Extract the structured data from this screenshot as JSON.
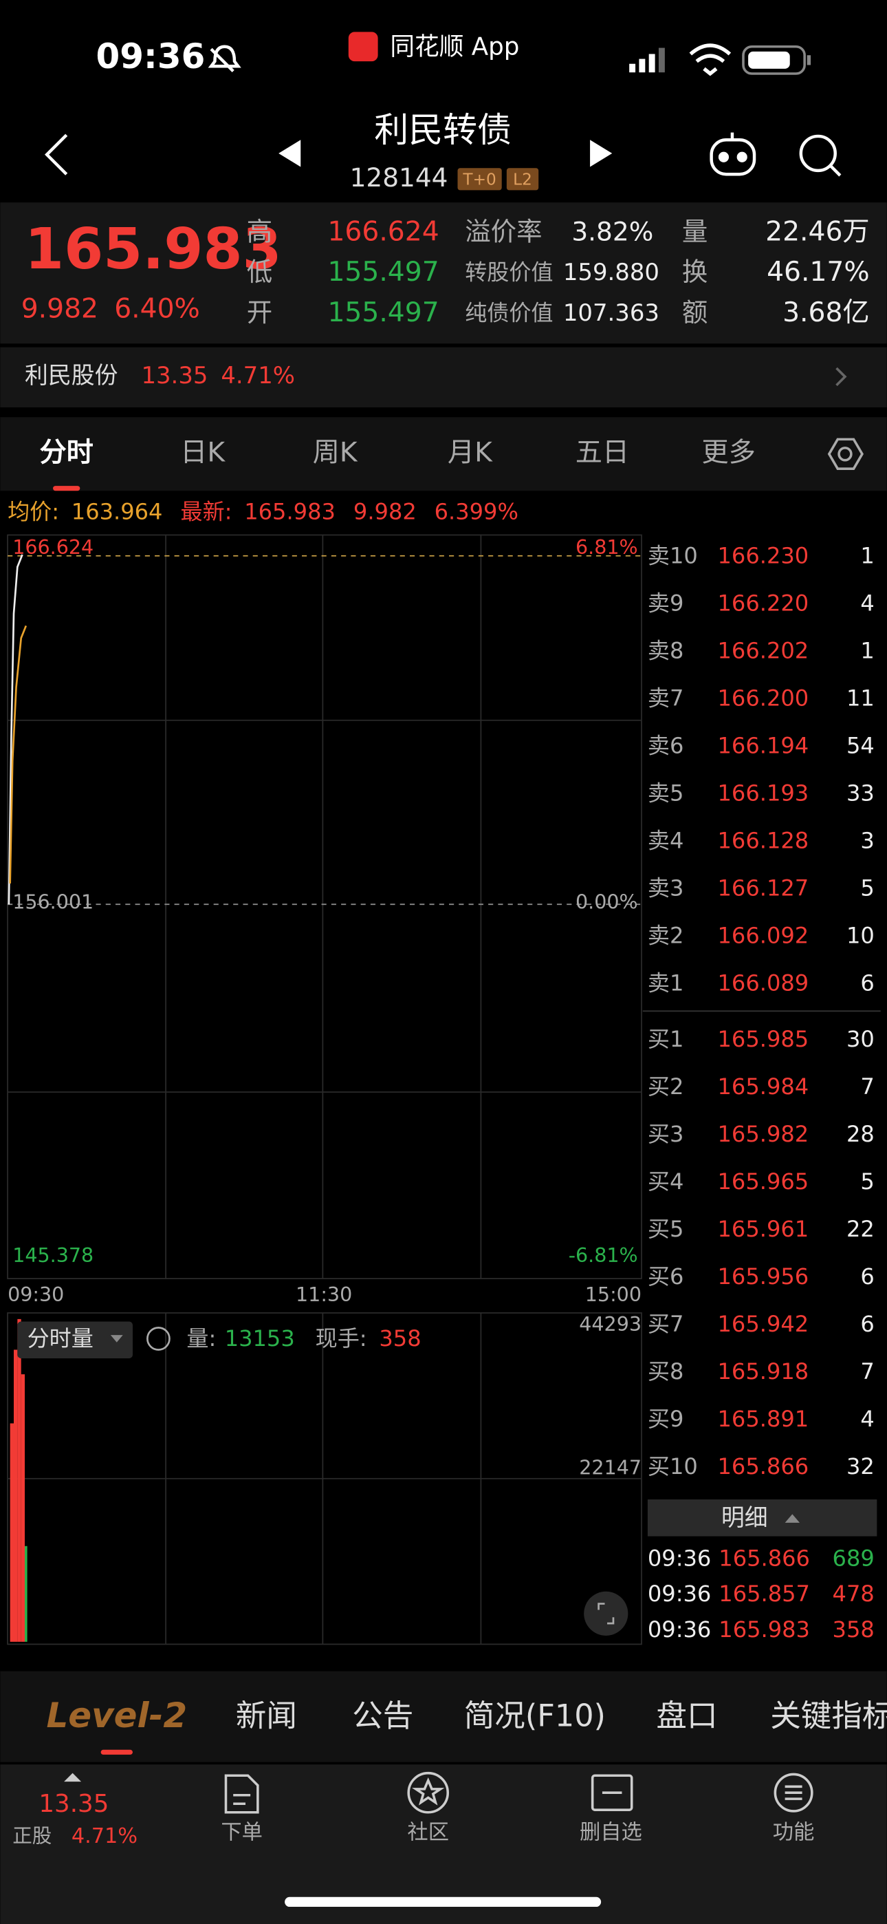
{
  "status": {
    "time": "09:36",
    "app": "同花顺 App"
  },
  "header": {
    "title": "利民转债",
    "code": "128144",
    "badges": [
      "T+0",
      "L2"
    ]
  },
  "quote": {
    "price": "165.983",
    "change": "9.982",
    "pct": "6.40%",
    "col1": [
      {
        "label": "高",
        "value": "166.624"
      },
      {
        "label": "低",
        "value": "155.497"
      },
      {
        "label": "开",
        "value": "155.497"
      }
    ],
    "col2": [
      {
        "label": "溢价率",
        "value": "3.82%"
      },
      {
        "label": "转股价值",
        "value": "159.880"
      },
      {
        "label": "纯债价值",
        "value": "107.363"
      }
    ],
    "col3": [
      {
        "label": "量",
        "value": "22.46万"
      },
      {
        "label": "换",
        "value": "46.17%"
      },
      {
        "label": "额",
        "value": "3.68亿"
      }
    ]
  },
  "stock": {
    "name": "利民股份",
    "price": "13.35",
    "pct": "4.71%"
  },
  "tabs": [
    "分时",
    "日K",
    "周K",
    "月K",
    "五日",
    "更多"
  ],
  "info": {
    "avg_label": "均价:",
    "avg": "163.964",
    "last_label": "最新:",
    "last": "165.983",
    "change": "9.982",
    "pct": "6.399%"
  },
  "chart": {
    "high": "166.624",
    "high_pct": "6.81%",
    "mid": "156.001",
    "mid_pct": "0.00%",
    "low": "145.378",
    "low_pct": "-6.81%",
    "times": [
      "09:30",
      "11:30",
      "15:00"
    ]
  },
  "volume": {
    "title": "分时量",
    "vol_label": "量:",
    "vol": "13153",
    "hand_label": "现手:",
    "hand": "358",
    "axis": [
      "44293",
      "22147"
    ]
  },
  "sells": [
    {
      "label": "卖10",
      "price": "166.230",
      "qty": "1"
    },
    {
      "label": "卖9",
      "price": "166.220",
      "qty": "4"
    },
    {
      "label": "卖8",
      "price": "166.202",
      "qty": "1"
    },
    {
      "label": "卖7",
      "price": "166.200",
      "qty": "11"
    },
    {
      "label": "卖6",
      "price": "166.194",
      "qty": "54"
    },
    {
      "label": "卖5",
      "price": "166.193",
      "qty": "33"
    },
    {
      "label": "卖4",
      "price": "166.128",
      "qty": "3"
    },
    {
      "label": "卖3",
      "price": "166.127",
      "qty": "5"
    },
    {
      "label": "卖2",
      "price": "166.092",
      "qty": "10"
    },
    {
      "label": "卖1",
      "price": "166.089",
      "qty": "6"
    }
  ],
  "buys": [
    {
      "label": "买1",
      "price": "165.985",
      "qty": "30"
    },
    {
      "label": "买2",
      "price": "165.984",
      "qty": "7"
    },
    {
      "label": "买3",
      "price": "165.982",
      "qty": "28"
    },
    {
      "label": "买4",
      "price": "165.965",
      "qty": "5"
    },
    {
      "label": "买5",
      "price": "165.961",
      "qty": "22"
    },
    {
      "label": "买6",
      "price": "165.956",
      "qty": "6"
    },
    {
      "label": "买7",
      "price": "165.942",
      "qty": "6"
    },
    {
      "label": "买8",
      "price": "165.918",
      "qty": "7"
    },
    {
      "label": "买9",
      "price": "165.891",
      "qty": "4"
    },
    {
      "label": "买10",
      "price": "165.866",
      "qty": "32"
    }
  ],
  "detail": {
    "title": "明细",
    "rows": [
      {
        "time": "09:36",
        "price": "165.866",
        "qty": "689"
      },
      {
        "time": "09:36",
        "price": "165.857",
        "qty": "478"
      },
      {
        "time": "09:36",
        "price": "165.983",
        "qty": "358"
      }
    ]
  },
  "bottom_tabs": [
    "Level-2",
    "新闻",
    "公告",
    "简况(F10)",
    "盘口",
    "关键指标"
  ],
  "toolbar": {
    "price": "13.35",
    "label": "正股",
    "pct": "4.71%",
    "items": [
      "下单",
      "社区",
      "删自选",
      "功能"
    ]
  }
}
